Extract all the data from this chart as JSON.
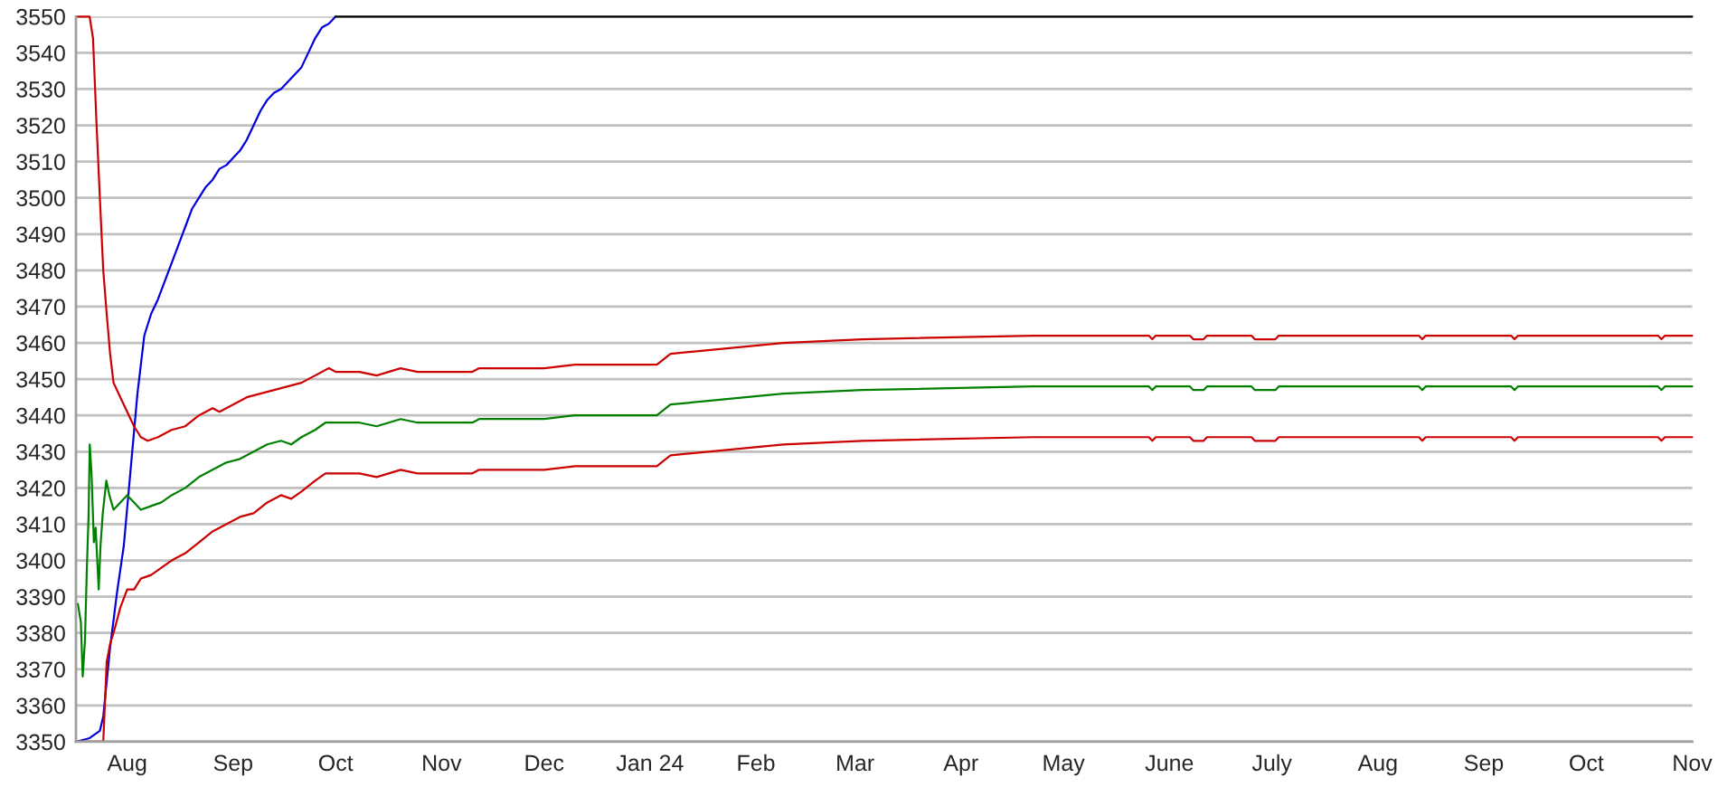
{
  "chart_data": {
    "type": "line",
    "grid": "y",
    "xlim": [
      "2023-07-17",
      "2024-11-01"
    ],
    "xticks": [
      {
        "value": "2023-08-01",
        "label": "Aug"
      },
      {
        "value": "2023-09-01",
        "label": "Sep"
      },
      {
        "value": "2023-10-01",
        "label": "Oct"
      },
      {
        "value": "2023-11-01",
        "label": "Nov"
      },
      {
        "value": "2023-12-01",
        "label": "Dec"
      },
      {
        "value": "2024-01-01",
        "label": "Jan 24"
      },
      {
        "value": "2024-02-01",
        "label": "Feb"
      },
      {
        "value": "2024-03-01",
        "label": "Mar"
      },
      {
        "value": "2024-04-01",
        "label": "Apr"
      },
      {
        "value": "2024-05-01",
        "label": "May"
      },
      {
        "value": "2024-06-01",
        "label": "June"
      },
      {
        "value": "2024-07-01",
        "label": "July"
      },
      {
        "value": "2024-08-01",
        "label": "Aug"
      },
      {
        "value": "2024-09-01",
        "label": "Sep"
      },
      {
        "value": "2024-10-01",
        "label": "Oct"
      },
      {
        "value": "2024-11-01",
        "label": "Nov"
      }
    ],
    "ylim": [
      3350,
      3550
    ],
    "yticks": [
      3350,
      3360,
      3370,
      3380,
      3390,
      3400,
      3410,
      3420,
      3430,
      3440,
      3450,
      3460,
      3470,
      3480,
      3490,
      3500,
      3510,
      3520,
      3530,
      3540,
      3550
    ],
    "series": [
      {
        "color": "#0000dd",
        "x": [
          "2023-07-17",
          "2023-07-21",
          "2023-07-24",
          "2023-07-25",
          "2023-07-27",
          "2023-07-29",
          "2023-07-31",
          "2023-08-02",
          "2023-08-04",
          "2023-08-06",
          "2023-08-08",
          "2023-08-10",
          "2023-08-12",
          "2023-08-14",
          "2023-08-16",
          "2023-08-18",
          "2023-08-20",
          "2023-08-22",
          "2023-08-24",
          "2023-08-26",
          "2023-08-28",
          "2023-08-30",
          "2023-09-01",
          "2023-09-03",
          "2023-09-05",
          "2023-09-07",
          "2023-09-09",
          "2023-09-11",
          "2023-09-13",
          "2023-09-15",
          "2023-09-17",
          "2023-09-19",
          "2023-09-21",
          "2023-09-23",
          "2023-09-25",
          "2023-09-27",
          "2023-09-29",
          "2023-10-01"
        ],
        "values": [
          3350,
          3351,
          3353,
          3357,
          3376,
          3391,
          3404,
          3425,
          3446,
          3462,
          3468,
          3472,
          3477,
          3482,
          3487,
          3492,
          3497,
          3500,
          3503,
          3505,
          3508,
          3509,
          3511,
          3513,
          3516,
          3520,
          3524,
          3527,
          3529,
          3530,
          3532,
          3534,
          3536,
          3540,
          3544,
          3547,
          3548,
          3550
        ]
      },
      {
        "color": "#000000",
        "x": [
          "2023-10-01",
          "2024-11-01"
        ],
        "values": [
          3550,
          3550
        ]
      },
      {
        "color": "#cc0000",
        "x": [
          "2023-07-17",
          "2023-07-21",
          "2023-07-22",
          "2023-07-23",
          "2023-07-24",
          "2023-07-25",
          "2023-07-26",
          "2023-07-27",
          "2023-07-28",
          "2023-07-30",
          "2023-08-01",
          "2023-08-03",
          "2023-08-05",
          "2023-08-07",
          "2023-08-10",
          "2023-08-14",
          "2023-08-18",
          "2023-08-22",
          "2023-08-26",
          "2023-08-28",
          "2023-09-01",
          "2023-09-05",
          "2023-09-09",
          "2023-09-13",
          "2023-09-17",
          "2023-09-21",
          "2023-09-25",
          "2023-09-29",
          "2023-10-01",
          "2023-10-08",
          "2023-10-13",
          "2023-10-20",
          "2023-10-25",
          "2023-11-10",
          "2023-11-12",
          "2023-12-01",
          "2023-12-10",
          "2024-01-03",
          "2024-01-07",
          "2024-01-18",
          "2024-02-09",
          "2024-03-03",
          "2024-04-22",
          "2024-05-26",
          "2024-05-27",
          "2024-05-28",
          "2024-06-07",
          "2024-06-08",
          "2024-06-11",
          "2024-06-12",
          "2024-06-25",
          "2024-06-26",
          "2024-07-02",
          "2024-07-03",
          "2024-08-13",
          "2024-08-14",
          "2024-08-15",
          "2024-09-09",
          "2024-09-10",
          "2024-09-11",
          "2024-10-22",
          "2024-10-23",
          "2024-10-24",
          "2024-11-01"
        ],
        "values": [
          3550,
          3550,
          3544,
          3521,
          3500,
          3480,
          3468,
          3457,
          3449,
          3445,
          3441,
          3437,
          3434,
          3433,
          3434,
          3436,
          3437,
          3440,
          3442,
          3441,
          3443,
          3445,
          3446,
          3447,
          3448,
          3449,
          3451,
          3453,
          3452,
          3452,
          3451,
          3453,
          3452,
          3452,
          3453,
          3453,
          3454,
          3454,
          3457,
          3458,
          3460,
          3461,
          3462,
          3462,
          3461,
          3462,
          3462,
          3461,
          3461,
          3462,
          3462,
          3461,
          3461,
          3462,
          3462,
          3461,
          3462,
          3462,
          3461,
          3462,
          3462,
          3461,
          3462,
          3462
        ]
      },
      {
        "color": "#008000",
        "x": [
          "2023-07-17T13:30",
          "2023-07-18T10:30",
          "2023-07-18T23:30",
          "2023-07-19T15:30",
          "2023-07-20T04:00",
          "2023-07-20T16:30",
          "2023-07-21T01:00",
          "2023-07-21T13:30",
          "2023-07-22T06:00",
          "2023-07-22T18:30",
          "2023-07-23T16:00",
          "2023-07-24T04:30",
          "2023-07-24T20:30",
          "2023-07-25T21:30",
          "2023-07-26T19:00",
          "2023-07-28",
          "2023-07-30",
          "2023-08-01",
          "2023-08-03",
          "2023-08-05",
          "2023-08-08",
          "2023-08-11",
          "2023-08-14",
          "2023-08-18",
          "2023-08-22",
          "2023-08-26",
          "2023-08-30",
          "2023-09-03",
          "2023-09-07",
          "2023-09-11",
          "2023-09-15",
          "2023-09-18",
          "2023-09-21",
          "2023-09-25",
          "2023-09-28",
          "2023-10-01",
          "2023-10-08",
          "2023-10-13",
          "2023-10-20",
          "2023-10-25",
          "2023-11-10",
          "2023-11-12",
          "2023-12-01",
          "2023-12-10",
          "2024-01-03",
          "2024-01-07",
          "2024-01-18",
          "2024-02-09",
          "2024-03-03",
          "2024-04-22",
          "2024-05-26",
          "2024-05-27",
          "2024-05-28",
          "2024-06-07",
          "2024-06-08",
          "2024-06-11",
          "2024-06-12",
          "2024-06-25",
          "2024-06-26",
          "2024-07-02",
          "2024-07-03",
          "2024-08-13",
          "2024-08-14",
          "2024-08-15",
          "2024-09-09",
          "2024-09-10",
          "2024-09-11",
          "2024-10-22",
          "2024-10-23",
          "2024-10-24",
          "2024-11-01"
        ],
        "values": [
          3388,
          3383,
          3368,
          3378,
          3397,
          3412,
          3432,
          3424,
          3405,
          3409,
          3392,
          3404,
          3413,
          3422,
          3418,
          3414,
          3416,
          3418,
          3416,
          3414,
          3415,
          3416,
          3418,
          3420,
          3423,
          3425,
          3427,
          3428,
          3430,
          3432,
          3433,
          3432,
          3434,
          3436,
          3438,
          3438,
          3438,
          3437,
          3439,
          3438,
          3438,
          3439,
          3439,
          3440,
          3440,
          3443,
          3444,
          3446,
          3447,
          3448,
          3448,
          3447,
          3448,
          3448,
          3447,
          3447,
          3448,
          3448,
          3447,
          3447,
          3448,
          3448,
          3447,
          3448,
          3448,
          3447,
          3448,
          3448,
          3447,
          3448,
          3448
        ]
      },
      {
        "color": "#cc0000",
        "x": [
          "2023-07-17",
          "2023-07-25",
          "2023-07-26",
          "2023-07-27",
          "2023-07-28",
          "2023-07-30",
          "2023-08-01",
          "2023-08-03",
          "2023-08-05",
          "2023-08-08",
          "2023-08-11",
          "2023-08-14",
          "2023-08-18",
          "2023-08-22",
          "2023-08-26",
          "2023-08-30",
          "2023-09-03",
          "2023-09-07",
          "2023-09-11",
          "2023-09-15",
          "2023-09-18",
          "2023-09-21",
          "2023-09-25",
          "2023-09-28",
          "2023-10-01",
          "2023-10-08",
          "2023-10-13",
          "2023-10-20",
          "2023-10-25",
          "2023-11-10",
          "2023-11-12",
          "2023-12-01",
          "2023-12-10",
          "2024-01-03",
          "2024-01-07",
          "2024-01-18",
          "2024-02-09",
          "2024-03-03",
          "2024-04-22",
          "2024-05-26",
          "2024-05-27",
          "2024-05-28",
          "2024-06-07",
          "2024-06-08",
          "2024-06-11",
          "2024-06-12",
          "2024-06-25",
          "2024-06-26",
          "2024-07-02",
          "2024-07-03",
          "2024-08-13",
          "2024-08-14",
          "2024-08-15",
          "2024-09-09",
          "2024-09-10",
          "2024-09-11",
          "2024-10-22",
          "2024-10-23",
          "2024-10-24",
          "2024-11-01"
        ],
        "values": [
          3350,
          3350,
          3372,
          3377,
          3380,
          3387,
          3392,
          3392,
          3395,
          3396,
          3398,
          3400,
          3402,
          3405,
          3408,
          3410,
          3412,
          3413,
          3416,
          3418,
          3417,
          3419,
          3422,
          3424,
          3424,
          3424,
          3423,
          3425,
          3424,
          3424,
          3425,
          3425,
          3426,
          3426,
          3429,
          3430,
          3432,
          3433,
          3434,
          3434,
          3433,
          3434,
          3434,
          3433,
          3433,
          3434,
          3434,
          3433,
          3433,
          3434,
          3434,
          3433,
          3434,
          3434,
          3433,
          3434,
          3434,
          3433,
          3434,
          3434
        ]
      }
    ]
  }
}
